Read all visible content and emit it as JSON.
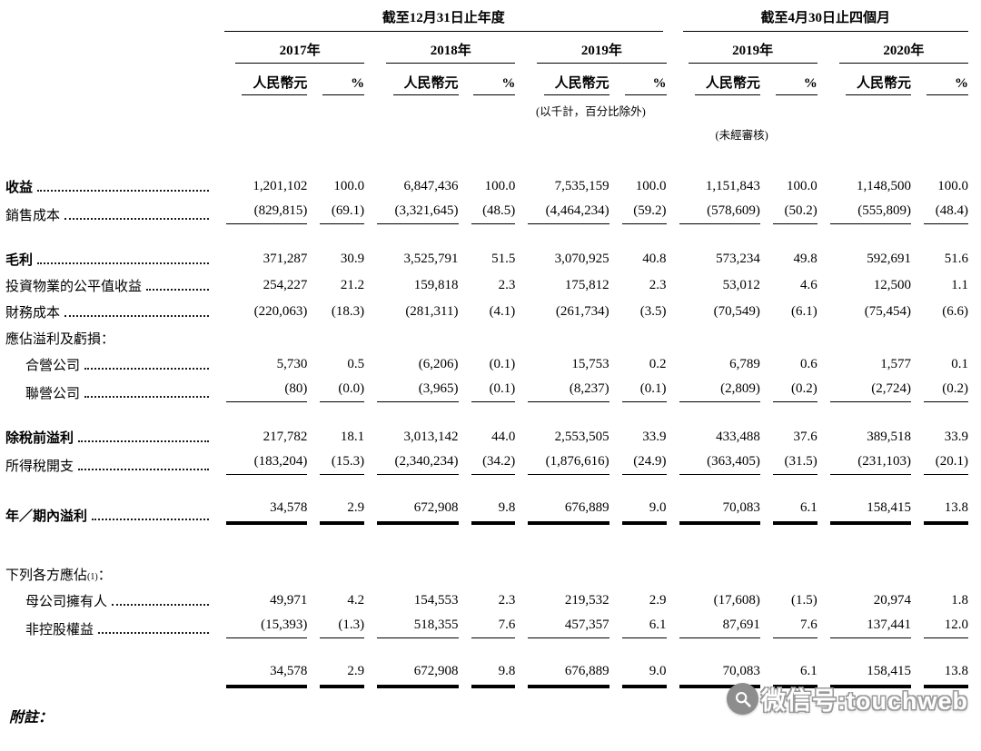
{
  "table": {
    "col_groups": [
      {
        "title": "截至12月31日止年度",
        "years": [
          "2017年",
          "2018年",
          "2019年"
        ]
      },
      {
        "title": "截至4月30日止四個月",
        "years": [
          "2019年",
          "2020年"
        ]
      }
    ],
    "unit_headers": [
      "人民幣元",
      "%"
    ],
    "notes": {
      "thousands_note": "(以千計，百分比除外)",
      "unaudited_note": "(未經審核)"
    },
    "rows": [
      {
        "label": "收益",
        "bold": true,
        "values": [
          "1,201,102",
          "100.0",
          "6,847,436",
          "100.0",
          "7,535,159",
          "100.0",
          "1,151,843",
          "100.0",
          "1,148,500",
          "100.0"
        ]
      },
      {
        "label": "銷售成本",
        "rule": "single",
        "values": [
          "(829,815)",
          "(69.1)",
          "(3,321,645)",
          "(48.5)",
          "(4,464,234)",
          "(59.2)",
          "(578,609)",
          "(50.2)",
          "(555,809)",
          "(48.4)"
        ]
      },
      {
        "label": "毛利",
        "bold": true,
        "gap_before": true,
        "values": [
          "371,287",
          "30.9",
          "3,525,791",
          "51.5",
          "3,070,925",
          "40.8",
          "573,234",
          "49.8",
          "592,691",
          "51.6"
        ]
      },
      {
        "label": "投資物業的公平值收益",
        "values": [
          "254,227",
          "21.2",
          "159,818",
          "2.3",
          "175,812",
          "2.3",
          "53,012",
          "4.6",
          "12,500",
          "1.1"
        ]
      },
      {
        "label": "財務成本",
        "values": [
          "(220,063)",
          "(18.3)",
          "(281,311)",
          "(4.1)",
          "(261,734)",
          "(3.5)",
          "(70,549)",
          "(6.1)",
          "(75,454)",
          "(6.6)"
        ]
      },
      {
        "label": "應佔溢利及虧損：",
        "header": true
      },
      {
        "label": "合營公司",
        "indent": true,
        "values": [
          "5,730",
          "0.5",
          "(6,206)",
          "(0.1)",
          "15,753",
          "0.2",
          "6,789",
          "0.6",
          "1,577",
          "0.1"
        ]
      },
      {
        "label": "聯營公司",
        "indent": true,
        "rule": "single",
        "values": [
          "(80)",
          "(0.0)",
          "(3,965)",
          "(0.1)",
          "(8,237)",
          "(0.1)",
          "(2,809)",
          "(0.2)",
          "(2,724)",
          "(0.2)"
        ]
      },
      {
        "label": "除稅前溢利",
        "bold": true,
        "gap_before": true,
        "values": [
          "217,782",
          "18.1",
          "3,013,142",
          "44.0",
          "2,553,505",
          "33.9",
          "433,488",
          "37.6",
          "389,518",
          "33.9"
        ]
      },
      {
        "label": "所得稅開支",
        "rule": "single",
        "values": [
          "(183,204)",
          "(15.3)",
          "(2,340,234)",
          "(34.2)",
          "(1,876,616)",
          "(24.9)",
          "(363,405)",
          "(31.5)",
          "(231,103)",
          "(20.1)"
        ]
      },
      {
        "label": "年／期內溢利",
        "bold": true,
        "gap_before": true,
        "rule": "double",
        "values": [
          "34,578",
          "2.9",
          "672,908",
          "9.8",
          "676,889",
          "9.0",
          "70,083",
          "6.1",
          "158,415",
          "13.8"
        ]
      },
      {
        "label": "下列各方應佔",
        "sup": "(1)",
        "suffix": "：",
        "header": true,
        "gap_before": true,
        "gap_large": true
      },
      {
        "label": "母公司擁有人",
        "indent": true,
        "values": [
          "49,971",
          "4.2",
          "154,553",
          "2.3",
          "219,532",
          "2.9",
          "(17,608)",
          "(1.5)",
          "20,974",
          "1.8"
        ]
      },
      {
        "label": "非控股權益",
        "indent": true,
        "rule": "single",
        "values": [
          "(15,393)",
          "(1.3)",
          "518,355",
          "7.6",
          "457,357",
          "6.1",
          "87,691",
          "7.6",
          "137,441",
          "12.0"
        ]
      },
      {
        "label": "",
        "gap_before": true,
        "rule": "double",
        "values": [
          "34,578",
          "2.9",
          "672,908",
          "9.8",
          "676,889",
          "9.0",
          "70,083",
          "6.1",
          "158,415",
          "13.8"
        ]
      }
    ]
  },
  "footnote": {
    "label": "附註："
  },
  "watermark": {
    "text": "微信号:touchweb",
    "icon": "magnifier-icon"
  }
}
